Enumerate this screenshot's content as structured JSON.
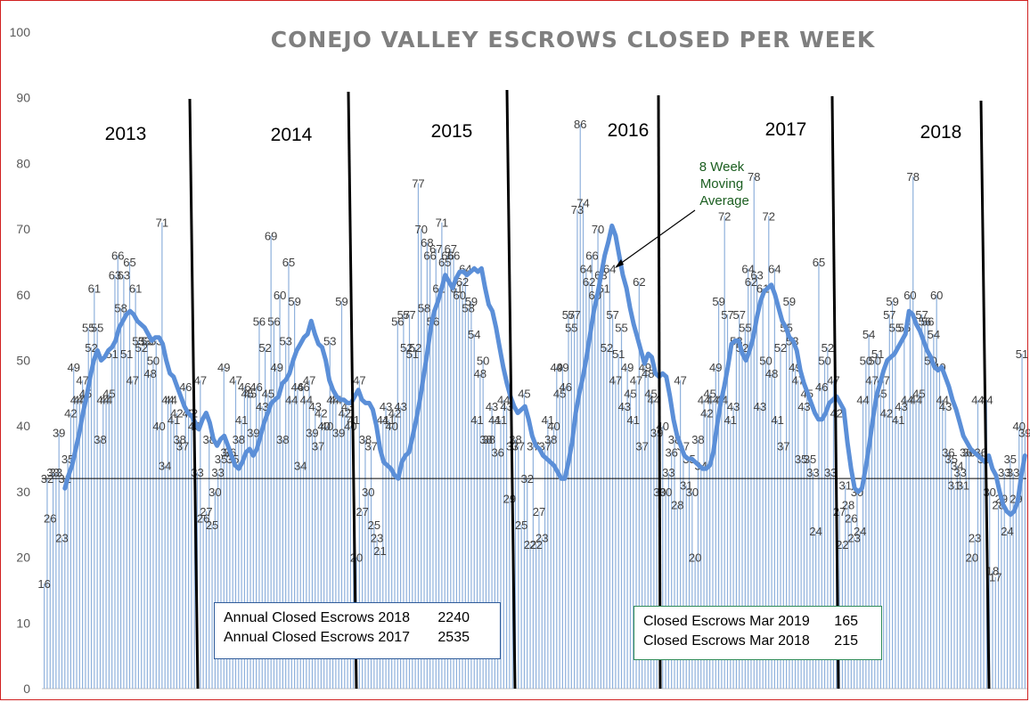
{
  "chart_data": {
    "type": "bar",
    "title": "CONEJO VALLEY ESCROWS CLOSED PER WEEK",
    "ylim": [
      0,
      100
    ],
    "yticks": [
      0,
      10,
      20,
      30,
      40,
      50,
      60,
      70,
      80,
      90,
      100
    ],
    "grid": false,
    "year_labels": [
      "2013",
      "2014",
      "2015",
      "2016",
      "2017",
      "2018"
    ],
    "reference_line": 32,
    "annotation": {
      "lines": [
        "8 Week",
        "Moving",
        "Average"
      ]
    },
    "series": [
      {
        "values": [
          16,
          32,
          26,
          33,
          33,
          39,
          23,
          32,
          35,
          42,
          49,
          44,
          44,
          47,
          45,
          55,
          52,
          61,
          55,
          38,
          44,
          44,
          45,
          51,
          63,
          66,
          58,
          63,
          51,
          65,
          47,
          61,
          53,
          52,
          53,
          53,
          48,
          50,
          53,
          40,
          71,
          34,
          44,
          44,
          41,
          42,
          38,
          37,
          46,
          42,
          42,
          40,
          33,
          47,
          26,
          27,
          38,
          25,
          30,
          33,
          35,
          49,
          36,
          36,
          35,
          47,
          38,
          41,
          46,
          45,
          45,
          39,
          46,
          56,
          43,
          52,
          45,
          69,
          56,
          49,
          60,
          38,
          53,
          65,
          44,
          59,
          46,
          34,
          46,
          44,
          47,
          39,
          43,
          37,
          42,
          40,
          40,
          53,
          44,
          44,
          39,
          59,
          42,
          43,
          40,
          41,
          20,
          47,
          27,
          38,
          30,
          37,
          25,
          23,
          21,
          41,
          43,
          41,
          40,
          42,
          56,
          43,
          57,
          52,
          57,
          51,
          52,
          77,
          70,
          58,
          68,
          66,
          56,
          67,
          61,
          71,
          65,
          66,
          67,
          66,
          61,
          60,
          62,
          64,
          58,
          59,
          54,
          41,
          48,
          50,
          38,
          38,
          43,
          41,
          36,
          41,
          44,
          43,
          29,
          37,
          38,
          37,
          25,
          45,
          32,
          22,
          37,
          22,
          27,
          23,
          37,
          41,
          38,
          40,
          49,
          45,
          49,
          46,
          57,
          55,
          57,
          73,
          86,
          74,
          64,
          62,
          66,
          60,
          70,
          63,
          61,
          52,
          64,
          57,
          47,
          51,
          55,
          43,
          49,
          45,
          41,
          47,
          62,
          37,
          49,
          48,
          45,
          44,
          39,
          30,
          40,
          30,
          33,
          36,
          38,
          28,
          47,
          37,
          31,
          35,
          30,
          20,
          38,
          34,
          44,
          42,
          45,
          44,
          49,
          59,
          44,
          72,
          57,
          41,
          43,
          53,
          57,
          52,
          55,
          64,
          62,
          78,
          63,
          43,
          61,
          50,
          72,
          48,
          64,
          41,
          52,
          37,
          55,
          59,
          53,
          49,
          47,
          35,
          43,
          45,
          35,
          33,
          24,
          65,
          46,
          50,
          52,
          33,
          47,
          42,
          27,
          22,
          31,
          28,
          26,
          23,
          30,
          24,
          44,
          50,
          54,
          47,
          50,
          51,
          45,
          47,
          42,
          57,
          59,
          55,
          41,
          43,
          55,
          44,
          60,
          78,
          44,
          45,
          57,
          56,
          56,
          50,
          54,
          60,
          49,
          44,
          43,
          36,
          35,
          31,
          34,
          33,
          31,
          36,
          36,
          20,
          23,
          44,
          36,
          35,
          44,
          30,
          18,
          17,
          28,
          29,
          33,
          24,
          35,
          33,
          29,
          40,
          51,
          39
        ]
      }
    ],
    "moving_average": [
      30.5,
      32.5,
      34.0,
      36.5,
      39.0,
      42.0,
      44.5,
      47.5,
      50.0,
      51.5,
      50.0,
      50.5,
      51.5,
      52.0,
      53.0,
      55.0,
      56.0,
      57.0,
      57.5,
      57.0,
      56.0,
      55.5,
      55.0,
      54.0,
      53.0,
      53.5,
      53.5,
      52.5,
      50.0,
      48.0,
      47.5,
      46.0,
      44.5,
      43.0,
      42.0,
      41.5,
      40.5,
      39.5,
      41.0,
      42.0,
      40.5,
      38.0,
      37.0,
      38.0,
      38.5,
      37.0,
      35.5,
      34.0,
      33.5,
      34.5,
      36.0,
      36.5,
      35.5,
      36.5,
      38.5,
      40.5,
      42.0,
      43.5,
      44.0,
      44.5,
      46.5,
      47.0,
      48.0,
      50.0,
      51.5,
      52.5,
      53.5,
      54.0,
      56.0,
      54.0,
      52.5,
      52.0,
      50.0,
      47.0,
      45.5,
      44.5,
      44.0,
      44.0,
      43.5,
      43.5,
      44.5,
      45.5,
      44.0,
      43.5,
      43.5,
      42.5,
      40.0,
      36.5,
      34.5,
      34.0,
      33.5,
      32.5,
      32.0,
      34.5,
      35.5,
      36.0,
      38.5,
      41.0,
      44.0,
      47.5,
      51.0,
      55.0,
      57.5,
      59.0,
      61.0,
      63.0,
      62.0,
      61.0,
      62.5,
      63.5,
      63.5,
      63.0,
      63.5,
      64.0,
      63.5,
      64.0,
      61.0,
      58.5,
      57.5,
      55.0,
      52.0,
      49.0,
      46.5,
      44.5,
      43.0,
      42.0,
      42.5,
      43.0,
      41.0,
      38.5,
      37.0,
      36.5,
      35.5,
      35.0,
      34.5,
      34.0,
      33.0,
      32.0,
      32.0,
      34.5,
      37.5,
      42.0,
      45.0,
      47.5,
      50.5,
      54.0,
      57.5,
      60.0,
      63.0,
      66.0,
      68.0,
      70.5,
      69.0,
      66.0,
      63.0,
      61.0,
      58.0,
      55.5,
      53.5,
      51.5,
      49.5,
      51.0,
      50.5,
      48.0,
      47.5,
      48.0,
      47.5,
      44.5,
      41.0,
      38.5,
      37.0,
      35.5,
      35.0,
      35.0,
      34.5,
      34.0,
      33.5,
      33.5,
      34.0,
      36.0,
      40.0,
      43.5,
      46.0,
      49.0,
      52.5,
      53.0,
      53.0,
      51.0,
      50.0,
      51.5,
      53.5,
      56.5,
      59.0,
      60.5,
      61.0,
      61.5,
      60.0,
      58.0,
      56.0,
      55.0,
      53.5,
      53.0,
      51.5,
      48.5,
      46.5,
      45.0,
      43.5,
      42.0,
      41.0,
      41.0,
      42.0,
      43.5,
      44.0,
      44.5,
      43.5,
      42.5,
      37.5,
      33.5,
      30.5,
      30.0,
      30.5,
      33.5,
      37.0,
      41.0,
      44.5,
      46.5,
      48.5,
      50.0,
      50.5,
      51.0,
      52.0,
      53.0,
      54.0,
      57.5,
      57.0,
      55.5,
      54.5,
      53.0,
      51.5,
      50.5,
      49.0,
      48.5,
      49.0,
      47.5,
      46.0,
      44.0,
      42.5,
      40.5,
      38.5,
      37.5,
      36.5,
      36.0,
      35.5,
      35.0,
      34.5,
      35.5,
      33.5,
      32.5,
      30.0,
      28.0,
      27.0,
      26.5,
      27.0,
      28.5,
      32.5,
      35.5
    ]
  },
  "summary_left": {
    "row1_label": "Annual Closed Escrows 2018",
    "row1_value": "2240",
    "row2_label": "Annual Closed Escrows 2017",
    "row2_value": "2535"
  },
  "summary_right": {
    "row1_label": "Closed Escrows Mar 2019",
    "row1_value": "165",
    "row2_label": "Closed Escrows Mar 2018",
    "row2_value": "215"
  },
  "colors": {
    "bars": "#8fb1dc",
    "moving_average": "#5b8fd8",
    "year_dividers": "#000000",
    "title": "#7f7f7f"
  }
}
